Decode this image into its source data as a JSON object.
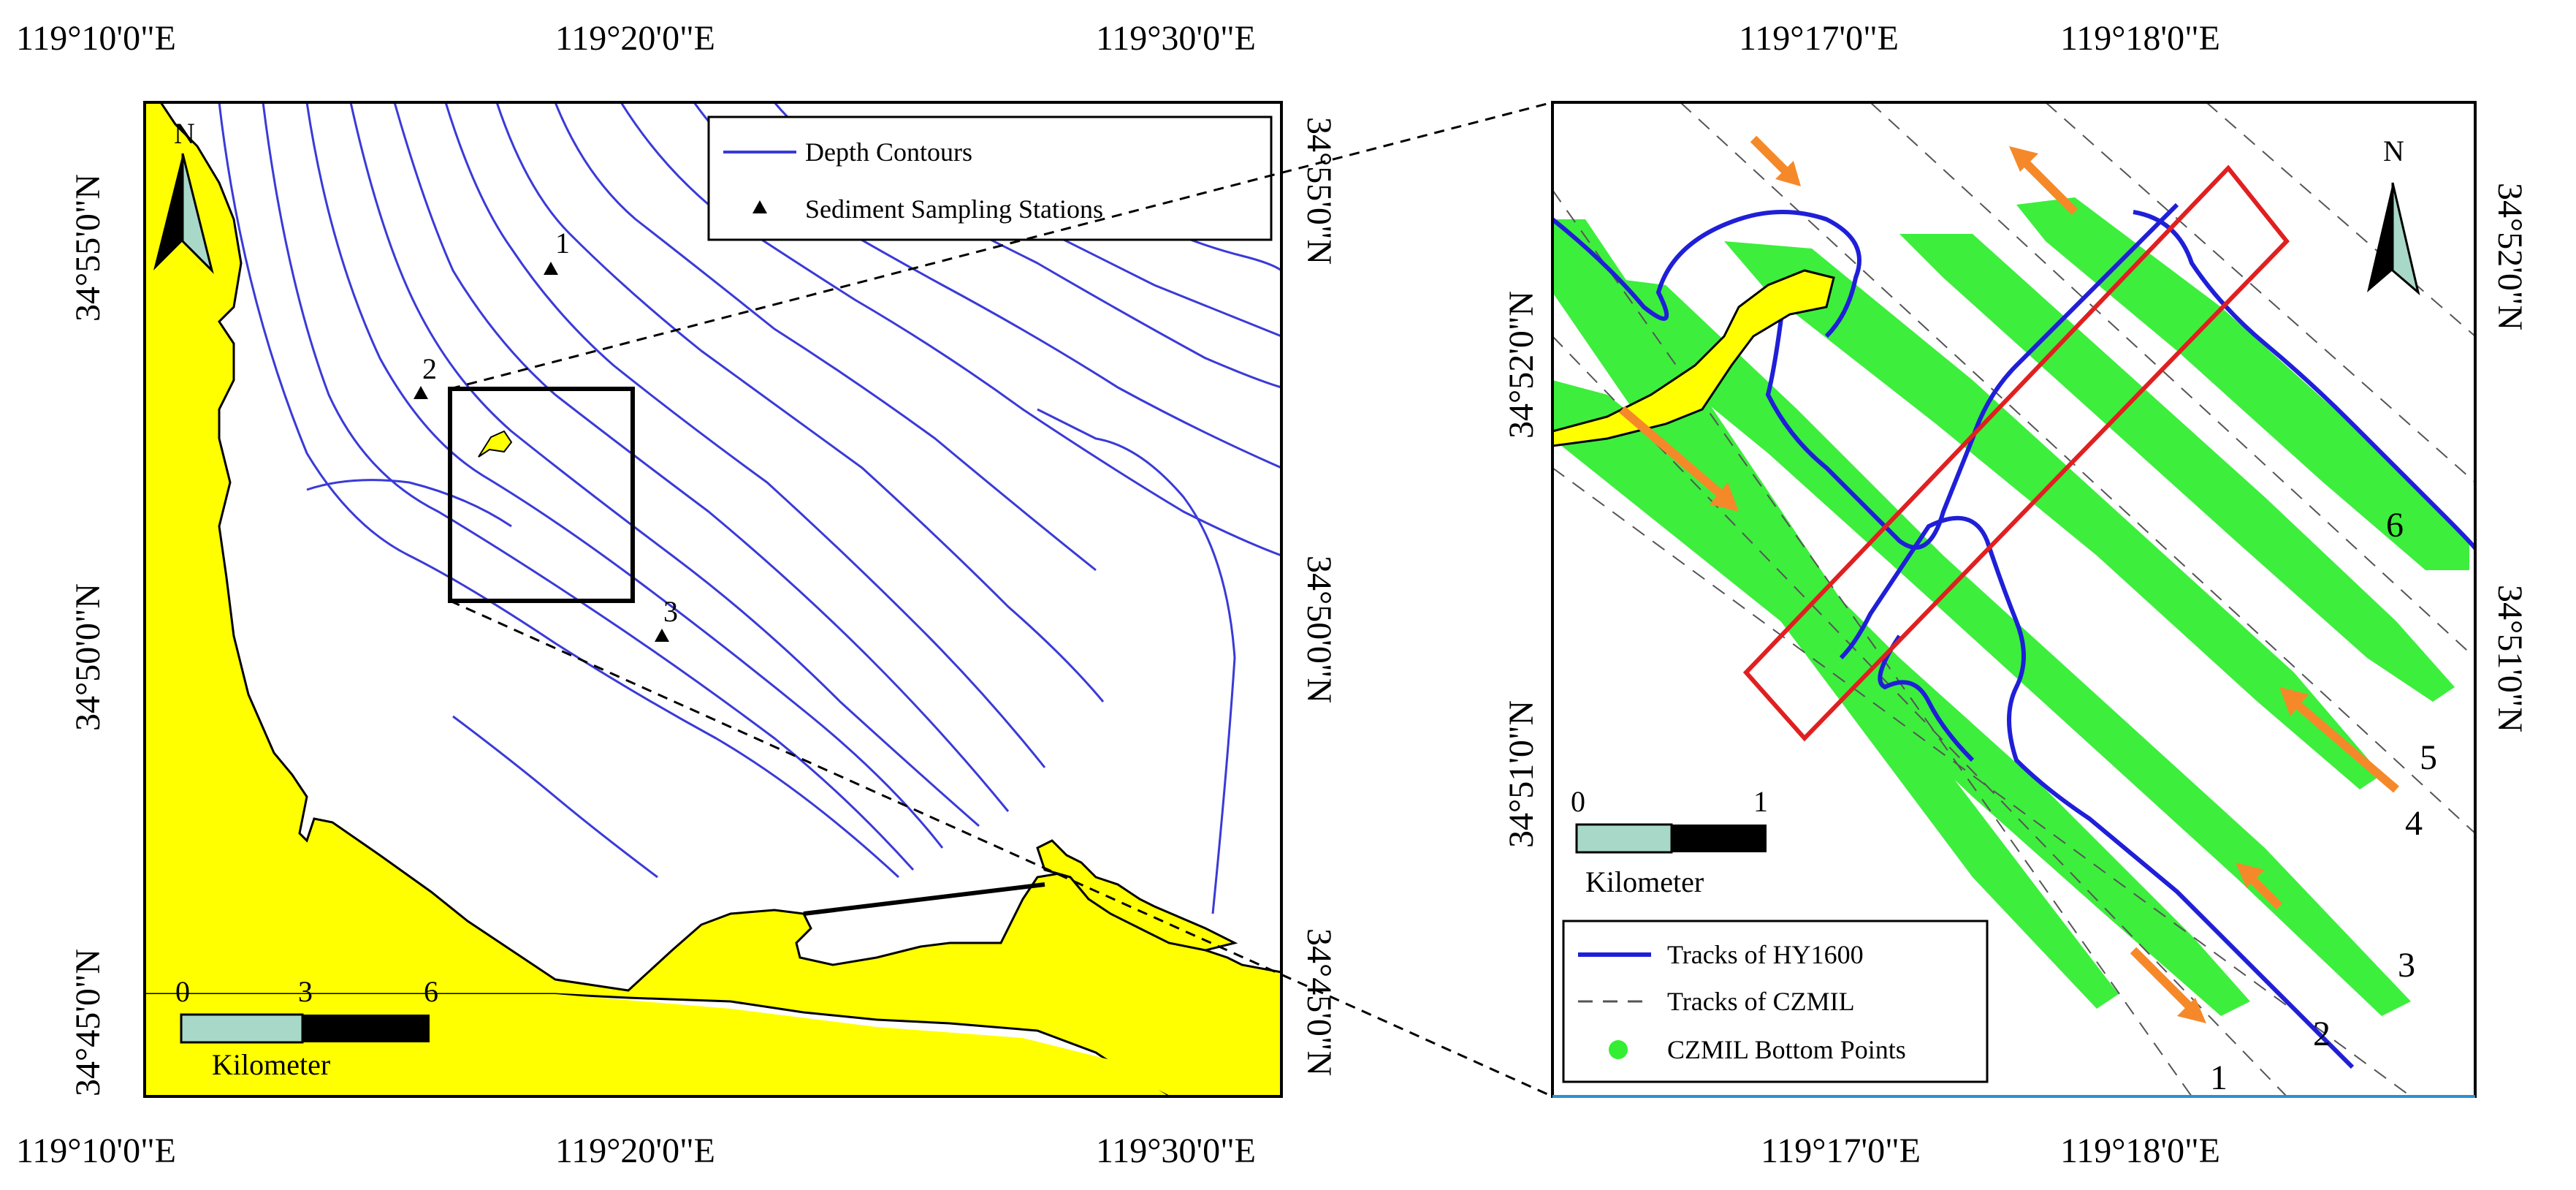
{
  "left_map": {
    "top_labels": [
      "119°10'0\"E",
      "119°20'0\"E",
      "119°30'0\"E"
    ],
    "bottom_labels": [
      "119°10'0\"E",
      "119°20'0\"E",
      "119°30'0\"E"
    ],
    "left_labels": [
      "34°55'0\"N",
      "34°50'0\"N",
      "34°45'0\"N"
    ],
    "right_labels": [
      "34°55'0\"N",
      "34°50'0\"N",
      "34°45'0\"N"
    ],
    "north_label": "N",
    "legend": {
      "contours": "Depth Contours",
      "stations": "Sediment Sampling Stations"
    },
    "stations": [
      "1",
      "2",
      "3"
    ],
    "scale": {
      "ticks": [
        "0",
        "3",
        "6"
      ],
      "unit": "Kilometer"
    }
  },
  "right_map": {
    "top_labels": [
      "119°17'0\"E",
      "119°18'0\"E"
    ],
    "bottom_labels": [
      "119°17'0\"E",
      "119°18'0\"E"
    ],
    "left_labels": [
      "34°52'0\"N",
      "34°51'0\"N"
    ],
    "right_labels": [
      "34°52'0\"N",
      "34°51'0\"N"
    ],
    "north_label": "N",
    "track_numbers": [
      "1",
      "2",
      "3",
      "4",
      "5",
      "6"
    ],
    "scale": {
      "ticks": [
        "0",
        "1"
      ],
      "unit": "Kilometer"
    },
    "legend": {
      "hy1600": "Tracks of HY1600",
      "czmil": "Tracks of CZMIL",
      "bottom": "CZMIL Bottom Points"
    }
  },
  "colors": {
    "land": "#ffff00",
    "contour": "#3a3ad8",
    "hy1600": "#1f1fd8",
    "czmil_points": "#33ee33",
    "arrow": "#f5892a",
    "box": "#e02020"
  }
}
